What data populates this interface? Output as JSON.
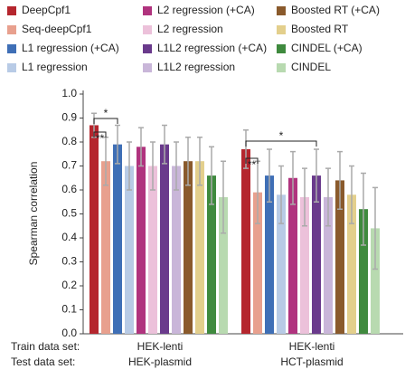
{
  "chart_data": {
    "type": "bar",
    "ylabel": "Spearman correlation",
    "row_labels": [
      "Train data set:",
      "Test data set:"
    ],
    "categories": [
      [
        "HEK-lenti",
        "HEK-plasmid"
      ],
      [
        "HEK-lenti",
        "HCT-plasmid"
      ]
    ],
    "ylim": [
      0,
      1
    ],
    "yticks": [
      {
        "value": 0,
        "label": "0.0"
      },
      0.1,
      0.2,
      0.3,
      0.4,
      0.5,
      0.6,
      0.7,
      0.8,
      0.9,
      {
        "value": 1,
        "label": "1.0"
      }
    ],
    "annotations": [
      "**",
      "*",
      "**",
      "*"
    ],
    "series": [
      {
        "name": "DeepCpf1",
        "color": "#b5262e",
        "values": [
          0.87,
          0.77
        ],
        "errors": [
          0.05,
          0.08
        ]
      },
      {
        "name": "Seq-deepCpf1",
        "color": "#e8a08e",
        "values": [
          0.72,
          0.59
        ],
        "errors": [
          0.1,
          0.13
        ]
      },
      {
        "name": "L1 regression (+CA)",
        "color": "#3f6fb6",
        "values": [
          0.79,
          0.66
        ],
        "errors": [
          0.08,
          0.11
        ]
      },
      {
        "name": "L1 regression",
        "color": "#b8cbe6",
        "values": [
          0.7,
          0.58
        ],
        "errors": [
          0.1,
          0.12
        ]
      },
      {
        "name": "L2 regression (+CA)",
        "color": "#b0337e",
        "values": [
          0.78,
          0.65
        ],
        "errors": [
          0.08,
          0.11
        ]
      },
      {
        "name": "L2 regression",
        "color": "#ecc1da",
        "values": [
          0.7,
          0.57
        ],
        "errors": [
          0.1,
          0.12
        ]
      },
      {
        "name": "L1L2 regression (+CA)",
        "color": "#6a3a8c",
        "values": [
          0.79,
          0.66
        ],
        "errors": [
          0.08,
          0.11
        ]
      },
      {
        "name": "L1L2 regression",
        "color": "#c9b6d9",
        "values": [
          0.7,
          0.57
        ],
        "errors": [
          0.1,
          0.12
        ]
      },
      {
        "name": "Boosted RT (+CA)",
        "color": "#8a5a2c",
        "values": [
          0.72,
          0.64
        ],
        "errors": [
          0.1,
          0.12
        ]
      },
      {
        "name": "Boosted RT",
        "color": "#e3cf8c",
        "values": [
          0.72,
          0.58
        ],
        "errors": [
          0.1,
          0.12
        ]
      },
      {
        "name": "CINDEL (+CA)",
        "color": "#3f8a3e",
        "values": [
          0.66,
          0.52
        ],
        "errors": [
          0.12,
          0.15
        ]
      },
      {
        "name": "CINDEL",
        "color": "#b8dab0",
        "values": [
          0.57,
          0.44
        ],
        "errors": [
          0.15,
          0.17
        ]
      }
    ]
  }
}
